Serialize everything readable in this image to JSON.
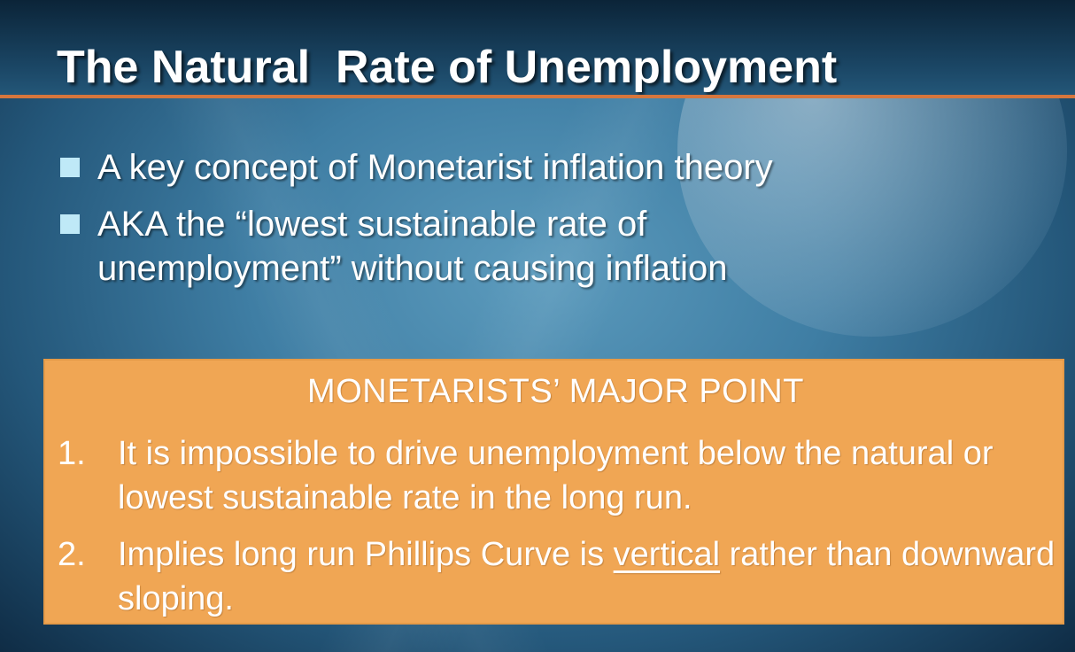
{
  "slide": {
    "title": "The Natural  Rate of Unemployment",
    "bullets": [
      {
        "text": "A key concept of Monetarist inflation theory"
      },
      {
        "text": "AKA the  “lowest sustainable rate of\nunemployment” without causing inflation"
      }
    ],
    "box": {
      "heading": "MONETARISTS’ MAJOR POINT",
      "points": [
        {
          "number": "1.",
          "text": "It is impossible to drive unemployment below the natural or lowest sustainable rate in the long run."
        },
        {
          "number": "2.",
          "before": "Implies long run Phillips Curve is ",
          "underlined": "vertical",
          "after": " rather than downward sloping."
        }
      ]
    }
  },
  "colors": {
    "title_rule": "#d6763d",
    "bullet_square": "#bfe9f7",
    "box_fill": "#f0a654",
    "text": "#ffffff"
  }
}
